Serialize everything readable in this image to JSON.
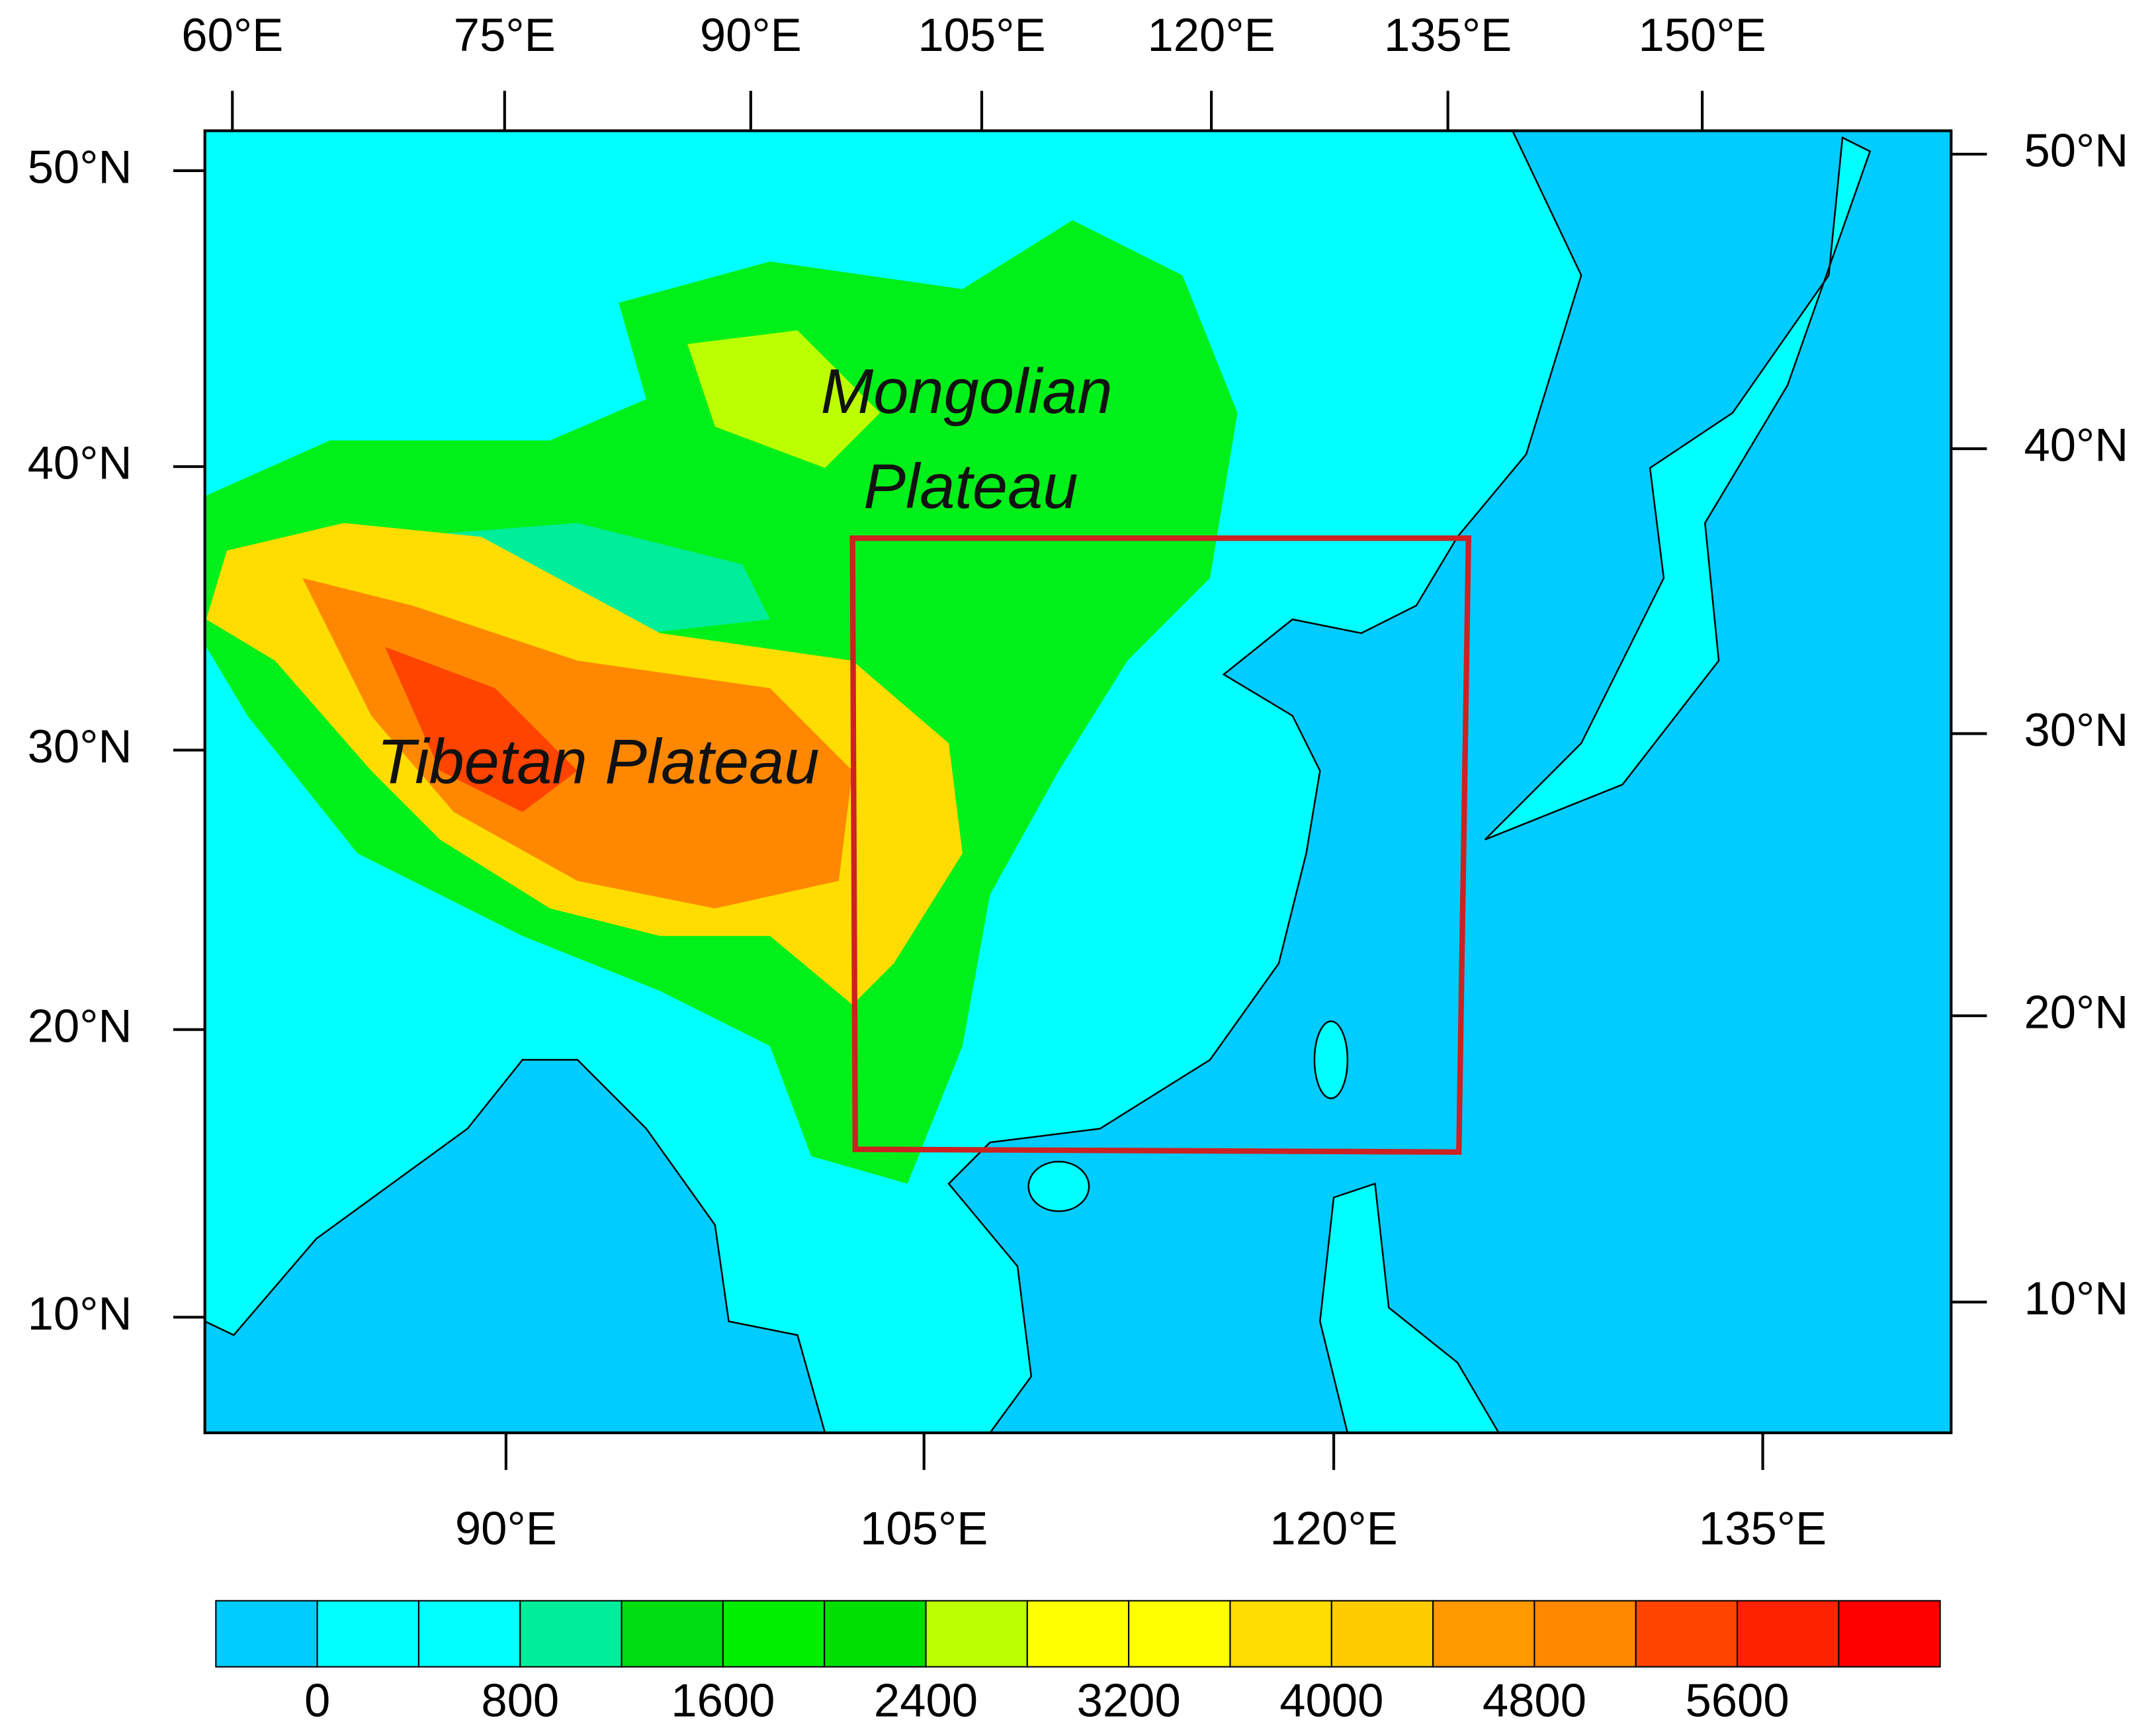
{
  "top_axis": {
    "labels": [
      "60°E",
      "75°E",
      "90°E",
      "105°E",
      "120°E",
      "135°E",
      "150°E"
    ]
  },
  "left_axis": {
    "labels": [
      "50°N",
      "40°N",
      "30°N",
      "20°N",
      "10°N"
    ]
  },
  "right_axis": {
    "labels": [
      "50°N",
      "40°N",
      "30°N",
      "20°N",
      "10°N"
    ]
  },
  "bottom_axis": {
    "labels": [
      "90°E",
      "105°E",
      "120°E",
      "135°E"
    ]
  },
  "annotations": {
    "mongolian": [
      "Mongolian",
      "Plateau"
    ],
    "tibetan": "Tibetan Plateau"
  },
  "colorbar": {
    "colors": [
      "#00ccff",
      "#00ffff",
      "#00ffff",
      "#00ee99",
      "#00dd11",
      "#00ee00",
      "#00e000",
      "#bbff00",
      "#ffff00",
      "#ffff00",
      "#ffdd00",
      "#ffcc00",
      "#ff9900",
      "#ff8800",
      "#ff4400",
      "#ff2200",
      "#ff0000"
    ],
    "ticks": [
      0,
      800,
      1600,
      2400,
      3200,
      4000,
      4800,
      5600
    ]
  }
}
